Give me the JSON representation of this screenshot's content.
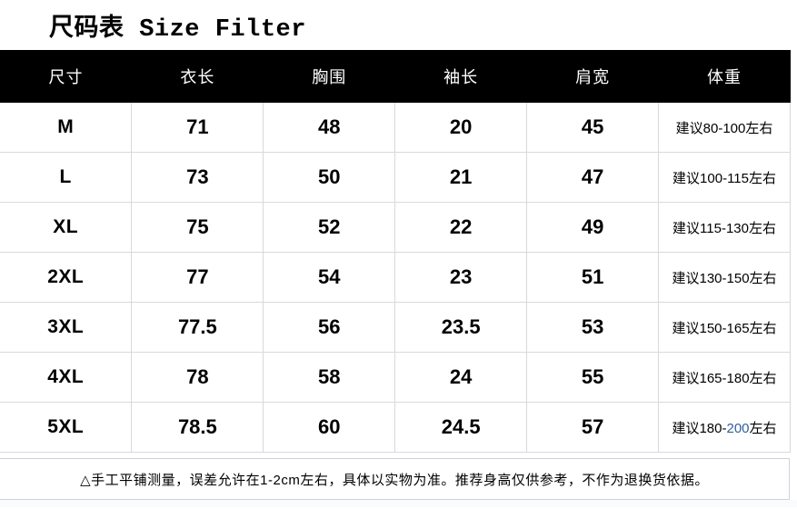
{
  "title": "尺码表 Size Filter",
  "table": {
    "header_bg": "#000000",
    "header_text_color": "#ffffff",
    "grid_line_color": "#d9d9d9",
    "columns": [
      "尺寸",
      "衣长",
      "胸围",
      "袖长",
      "肩宽",
      "体重"
    ],
    "rows": [
      {
        "size": "M",
        "values": [
          "71",
          "48",
          "20",
          "45"
        ],
        "weight": {
          "text": "建议80-100左右"
        }
      },
      {
        "size": "L",
        "values": [
          "73",
          "50",
          "21",
          "47"
        ],
        "weight": {
          "text": "建议100-115左右"
        }
      },
      {
        "size": "XL",
        "values": [
          "75",
          "52",
          "22",
          "49"
        ],
        "weight": {
          "text": "建议115-130左右"
        }
      },
      {
        "size": "2XL",
        "values": [
          "77",
          "54",
          "23",
          "51"
        ],
        "weight": {
          "text": "建议130-150左右"
        }
      },
      {
        "size": "3XL",
        "values": [
          "77.5",
          "56",
          "23.5",
          "53"
        ],
        "weight": {
          "text": "建议150-165左右"
        }
      },
      {
        "size": "4XL",
        "values": [
          "78",
          "58",
          "24",
          "55"
        ],
        "weight": {
          "text": "建议165-180左右"
        }
      },
      {
        "size": "5XL",
        "values": [
          "78.5",
          "60",
          "24.5",
          "57"
        ],
        "weight": {
          "text": "建议180-200左右",
          "accent_text": "200",
          "accent_color": "#2e5f9e"
        }
      }
    ]
  },
  "footer": {
    "note": "△手工平铺测量，误差允许在1-2cm左右，具体以实物为准。推荐身高仅供参考，不作为退换货依据。"
  }
}
